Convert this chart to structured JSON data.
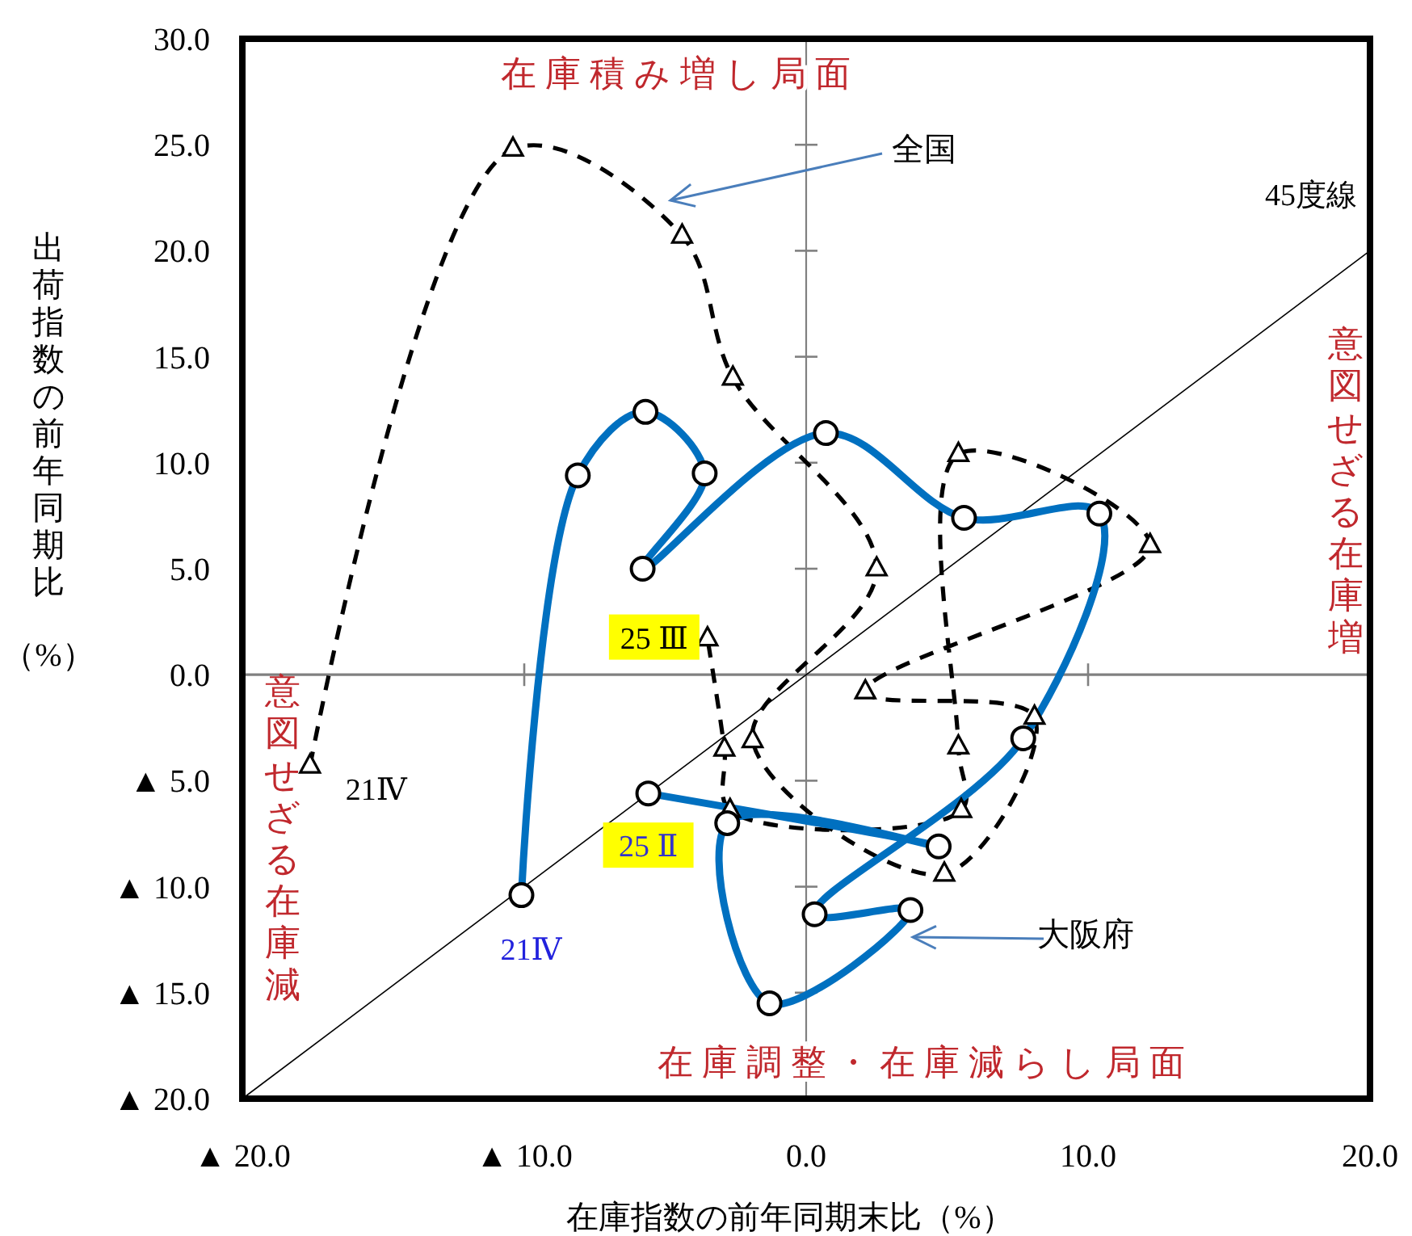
{
  "chart_data": {
    "type": "line",
    "xlabel": "在庫指数の前年同期末比（%）",
    "ylabel": "出荷指数の前年同期比（%）",
    "xlim": [
      -20,
      20
    ],
    "ylim": [
      -20,
      30
    ],
    "xticks": [
      {
        "value": -20,
        "label": "▲ 20.0"
      },
      {
        "value": -10,
        "label": "▲ 10.0"
      },
      {
        "value": 0,
        "label": "0.0"
      },
      {
        "value": 10,
        "label": "10.0"
      },
      {
        "value": 20,
        "label": "20.0"
      }
    ],
    "yticks": [
      {
        "value": -20,
        "label": "▲ 20.0"
      },
      {
        "value": -15,
        "label": "▲ 15.0"
      },
      {
        "value": -10,
        "label": "▲ 10.0"
      },
      {
        "value": -5,
        "label": "▲ 5.0"
      },
      {
        "value": 0,
        "label": "0.0"
      },
      {
        "value": 5,
        "label": "5.0"
      },
      {
        "value": 10,
        "label": "10.0"
      },
      {
        "value": 15,
        "label": "15.0"
      },
      {
        "value": 20,
        "label": "20.0"
      },
      {
        "value": 25,
        "label": "25.0"
      },
      {
        "value": 30,
        "label": "30.0"
      }
    ],
    "grid": false,
    "series": [
      {
        "name": "45度線",
        "color": "#000000",
        "marker": "none",
        "line_style": "solid",
        "x": [
          -20,
          20
        ],
        "values": [
          -20,
          20
        ]
      },
      {
        "color": "#000000",
        "marker": "triangle",
        "line_style": "dashed",
        "x": [
          -17.6,
          -10.4,
          -4.4,
          -2.6,
          2.5,
          -1.9,
          4.9,
          8.1,
          2.1,
          12.2,
          5.4,
          5.4,
          5.5,
          -2.7,
          -2.9,
          -3.5
        ],
        "values": [
          -4.3,
          24.8,
          20.7,
          14.0,
          5.0,
          -3.1,
          -9.4,
          -2.0,
          -0.8,
          6.1,
          10.4,
          -3.4,
          -6.4,
          -6.4,
          -3.5,
          1.7
        ]
      },
      {
        "color": "#0070c0",
        "marker": "circle",
        "line_style": "solid",
        "x": [
          -10.1,
          -8.1,
          -5.7,
          -3.6,
          -5.8,
          0.7,
          5.6,
          10.4,
          7.7,
          0.3,
          3.7,
          -1.3,
          -2.8,
          4.7,
          -5.6
        ],
        "values": [
          -10.4,
          9.4,
          12.4,
          9.5,
          5.0,
          11.4,
          7.4,
          7.6,
          -3.0,
          -11.3,
          -11.1,
          -15.5,
          -7.0,
          -8.1,
          -5.6
        ]
      }
    ],
    "annotations": [
      "在 庫 積 み 増 し 局 面",
      "意図せざる在庫増",
      "意図せざる在庫減",
      "在 庫 調 整 ・ 在 庫 減 ら し 局 面",
      "全国",
      "大阪府",
      {
        "text": "21Ⅳ",
        "x": -17.6,
        "y": -4.3
      },
      {
        "text": "21Ⅳ",
        "x": -10.1,
        "y": -10.4
      },
      {
        "text": "25 Ⅲ",
        "x": -3.5,
        "y": 1.7
      },
      {
        "text": "25 Ⅱ",
        "x": -5.6,
        "y": -5.6
      }
    ]
  }
}
